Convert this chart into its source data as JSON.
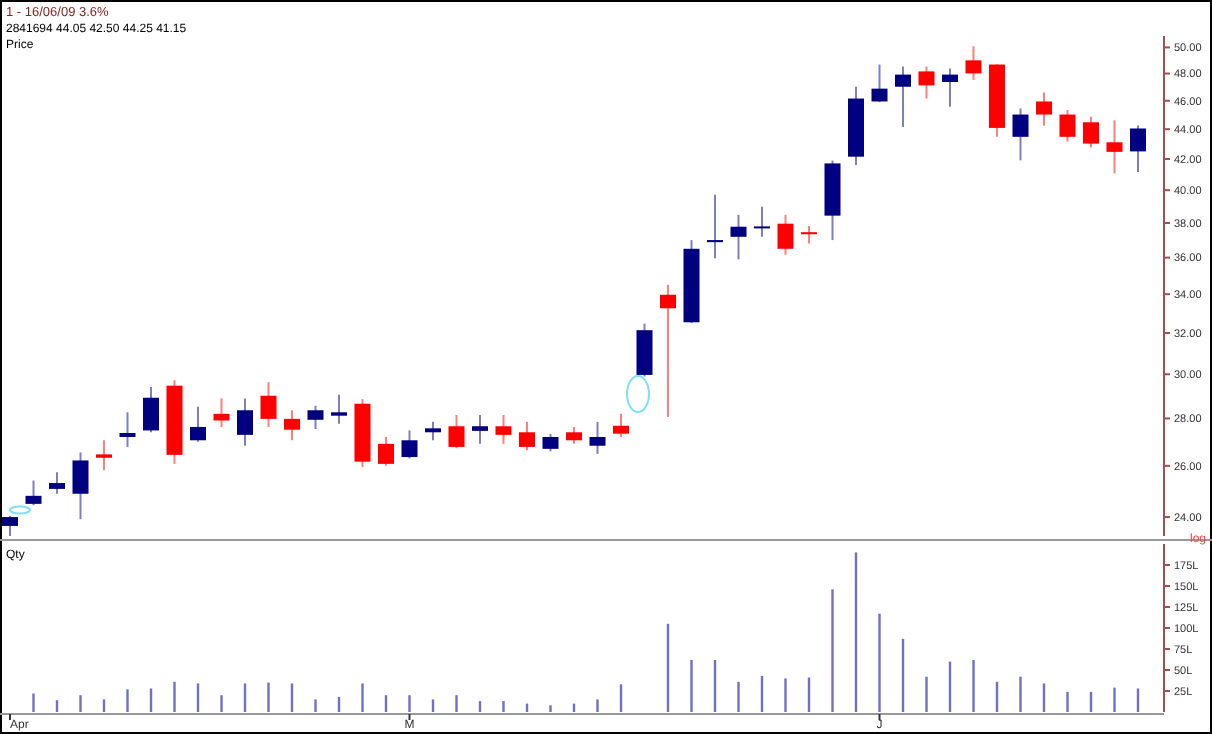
{
  "chart_data": [
    {
      "type": "candlestick",
      "title": "1 - 16/06/09 3.6%",
      "subtitle": "2841694 44.05 42.50 44.25 41.15",
      "ylabel": "Price",
      "annotations": [
        "log"
      ],
      "log": true,
      "tick_labels": "y",
      "categories": [
        null,
        null,
        null,
        null,
        null,
        null,
        null,
        null,
        null,
        null,
        null,
        null,
        null,
        null,
        null,
        null,
        null,
        null,
        null,
        null,
        null,
        null,
        null,
        null,
        null,
        null,
        null,
        null,
        null,
        null,
        null,
        null,
        null,
        null,
        null,
        null,
        null,
        null,
        null,
        null,
        null,
        null,
        null,
        null,
        null,
        null,
        null,
        null,
        null
      ],
      "ylim": [
        23.3,
        50.9
      ],
      "yticks": [
        {
          "value": 24,
          "label": "24.00"
        },
        {
          "value": 26,
          "label": "26.00"
        },
        {
          "value": 28,
          "label": "28.00"
        },
        {
          "value": 30,
          "label": "30.00"
        },
        {
          "value": 32,
          "label": "32.00"
        },
        {
          "value": 34,
          "label": "34.00"
        },
        {
          "value": 36,
          "label": "36.00"
        },
        {
          "value": 38,
          "label": "38.00"
        },
        {
          "value": 40,
          "label": "40.00"
        },
        {
          "value": 42,
          "label": "42.00"
        },
        {
          "value": 44,
          "label": "44.00"
        },
        {
          "value": 46,
          "label": "46.00"
        },
        {
          "value": 48,
          "label": "48.00"
        },
        {
          "value": 50,
          "label": "50.00"
        }
      ],
      "ohlc": [
        [
          23.67,
          24.05,
          23.3,
          24.0
        ],
        [
          24.5,
          25.41,
          24.45,
          24.81
        ],
        [
          25.08,
          25.74,
          24.89,
          25.31
        ],
        [
          24.89,
          26.55,
          23.92,
          26.22
        ],
        [
          26.47,
          27.06,
          25.82,
          26.33
        ],
        [
          27.2,
          28.27,
          26.78,
          27.37
        ],
        [
          27.48,
          29.41,
          27.4,
          28.92
        ],
        [
          29.47,
          29.72,
          26.08,
          26.45
        ],
        [
          27.06,
          28.51,
          27.0,
          27.63
        ],
        [
          28.2,
          28.89,
          27.63,
          27.91
        ],
        [
          27.29,
          28.89,
          26.83,
          28.36
        ],
        [
          29.01,
          29.63,
          27.63,
          27.98
        ],
        [
          27.98,
          28.36,
          27.06,
          27.51
        ],
        [
          27.94,
          28.56,
          27.54,
          28.36
        ],
        [
          28.12,
          29.05,
          27.77,
          28.27
        ],
        [
          28.65,
          28.86,
          25.95,
          26.17
        ],
        [
          26.91,
          27.2,
          26.0,
          26.08
        ],
        [
          26.36,
          27.48,
          26.3,
          27.06
        ],
        [
          27.4,
          27.85,
          27.06,
          27.57
        ],
        [
          27.66,
          28.15,
          26.73,
          26.78
        ],
        [
          27.46,
          28.15,
          26.91,
          27.66
        ],
        [
          27.66,
          28.15,
          26.91,
          27.29
        ],
        [
          27.4,
          27.85,
          26.64,
          26.78
        ],
        [
          26.7,
          27.33,
          26.6,
          27.2
        ],
        [
          27.4,
          27.63,
          26.91,
          27.06
        ],
        [
          26.83,
          27.85,
          26.49,
          27.2
        ],
        [
          27.68,
          28.2,
          27.2,
          27.34
        ],
        [
          29.97,
          32.47,
          29.9,
          32.14
        ],
        [
          33.97,
          34.5,
          28.06,
          33.26
        ],
        [
          32.54,
          37.0,
          32.5,
          36.5
        ],
        [
          36.88,
          39.72,
          35.97,
          37.0
        ],
        [
          37.19,
          38.49,
          35.9,
          37.78
        ],
        [
          37.75,
          38.98,
          37.19,
          37.8
        ],
        [
          37.96,
          38.49,
          36.16,
          36.5
        ],
        [
          37.46,
          37.83,
          36.8,
          37.34
        ],
        [
          38.44,
          41.9,
          37.0,
          41.71
        ],
        [
          42.15,
          47.02,
          41.6,
          46.16
        ],
        [
          45.95,
          48.68,
          45.9,
          46.88
        ],
        [
          47.02,
          48.53,
          44.16,
          47.92
        ],
        [
          48.16,
          48.53,
          46.16,
          47.12
        ],
        [
          47.37,
          48.37,
          45.57,
          47.92
        ],
        [
          49.0,
          50.09,
          47.53,
          48.01
        ],
        [
          48.68,
          48.7,
          43.48,
          44.09
        ],
        [
          43.48,
          45.45,
          41.91,
          45.02
        ],
        [
          45.95,
          46.59,
          44.24,
          45.02
        ],
        [
          45.02,
          45.34,
          43.16,
          43.48
        ],
        [
          44.48,
          44.87,
          42.76,
          43.02
        ],
        [
          43.11,
          44.62,
          41.06,
          42.47
        ],
        [
          42.5,
          44.25,
          41.15,
          44.05
        ]
      ],
      "colors": [
        "#000080",
        "#000080",
        "#000080",
        "#000080",
        "#ff0000",
        "#000080",
        "#000080",
        "#ff0000",
        "#000080",
        "#ff0000",
        "#000080",
        "#ff0000",
        "#ff0000",
        "#000080",
        "#000080",
        "#ff0000",
        "#ff0000",
        "#000080",
        "#000080",
        "#ff0000",
        "#000080",
        "#ff0000",
        "#ff0000",
        "#000080",
        "#ff0000",
        "#000080",
        "#ff0000",
        "#000080",
        "#ff0000",
        "#000080",
        "#000080",
        "#000080",
        "#000080",
        "#ff0000",
        "#ff0000",
        "#000080",
        "#000080",
        "#000080",
        "#000080",
        "#ff0000",
        "#000080",
        "#ff0000",
        "#ff0000",
        "#000080",
        "#ff0000",
        "#ff0000",
        "#ff0000",
        "#ff0000",
        "#000080"
      ]
    },
    {
      "type": "bar",
      "ylabel": "Qty",
      "color": "#7070c8",
      "categories": [
        "Apr",
        null,
        null,
        null,
        null,
        null,
        null,
        null,
        null,
        null,
        null,
        null,
        null,
        null,
        null,
        null,
        null,
        "M",
        null,
        null,
        null,
        null,
        null,
        null,
        null,
        null,
        null,
        null,
        null,
        null,
        null,
        null,
        null,
        null,
        null,
        null,
        null,
        "J",
        null,
        null,
        null,
        null,
        null,
        null,
        null,
        null,
        null,
        null,
        null
      ],
      "values": [
        null,
        22,
        14,
        20,
        15,
        27,
        28,
        36,
        34,
        20,
        34,
        35,
        34,
        15,
        18,
        34,
        20,
        20,
        15,
        20,
        13,
        13,
        10,
        8,
        10,
        15,
        33,
        null,
        105,
        62,
        62,
        36,
        43,
        40,
        41,
        146,
        190,
        117,
        87,
        42,
        60,
        62,
        36,
        42,
        34,
        24,
        24,
        29,
        28
      ],
      "ylim": [
        0,
        200
      ],
      "yticks": [
        {
          "value": 25,
          "label": "25L"
        },
        {
          "value": 50,
          "label": "50L"
        },
        {
          "value": 75,
          "label": "75L"
        },
        {
          "value": 100,
          "label": "100L"
        },
        {
          "value": 125,
          "label": "125L"
        },
        {
          "value": 150,
          "label": "150L"
        },
        {
          "value": 175,
          "label": "175L"
        }
      ]
    }
  ]
}
